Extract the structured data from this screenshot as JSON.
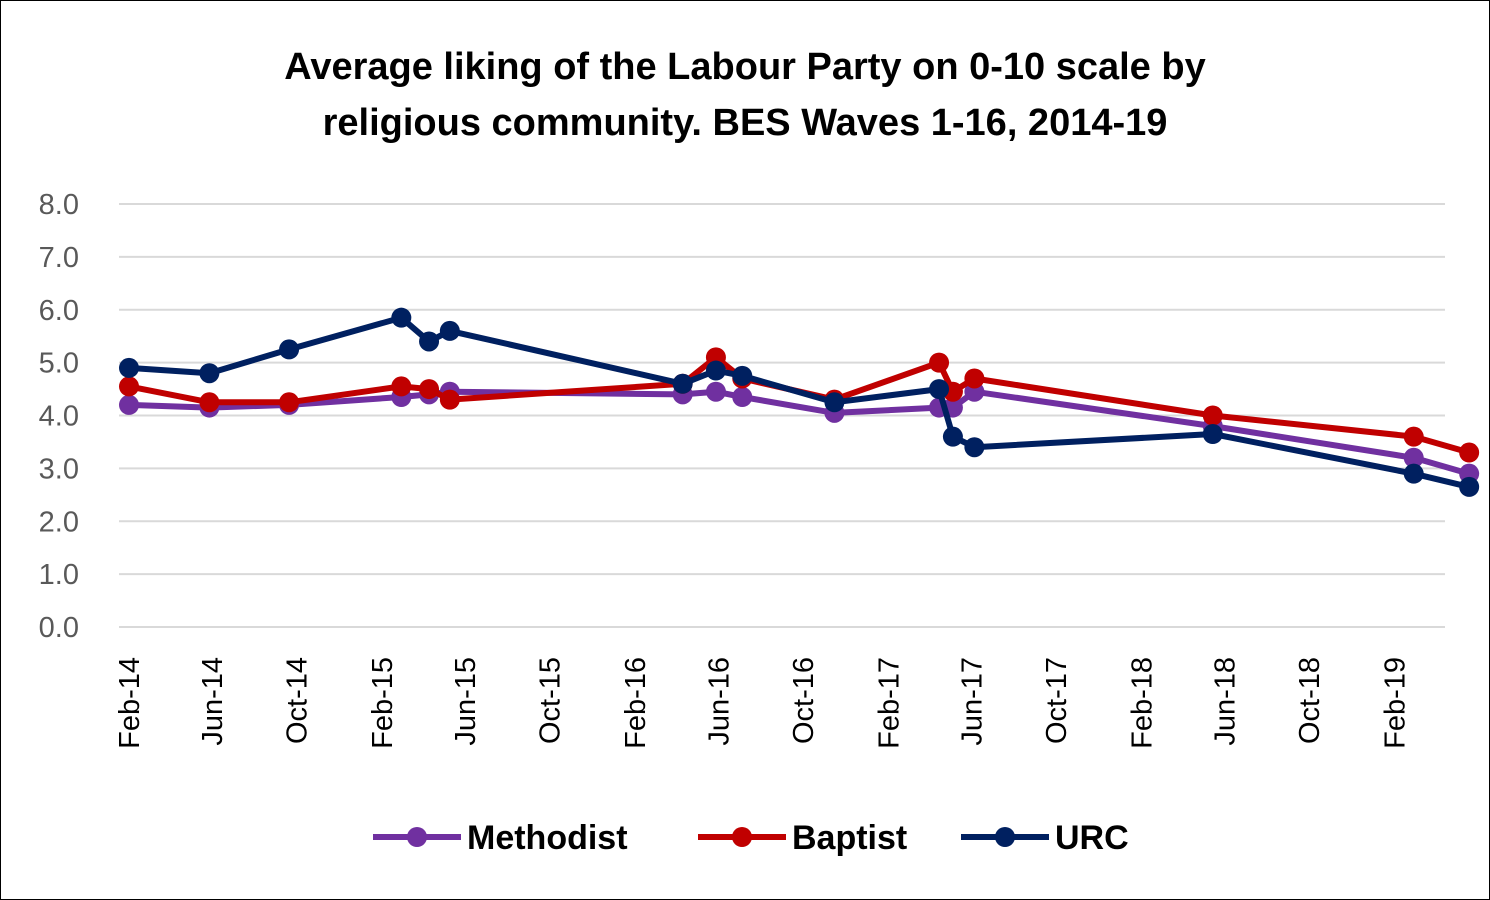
{
  "chart_data": {
    "type": "line",
    "title_line1": "Average liking of the Labour Party on 0-10 scale by",
    "title_line2": "religious community. BES Waves 1-16, 2014-19",
    "ylim": [
      0,
      8
    ],
    "yticks": [
      "0.0",
      "1.0",
      "2.0",
      "3.0",
      "4.0",
      "5.0",
      "6.0",
      "7.0",
      "8.0"
    ],
    "xaxis": {
      "type": "date",
      "range": [
        "2014-02-01",
        "2019-06-01"
      ],
      "ticks": [
        {
          "label": "Feb-14",
          "date": "2014-02-01"
        },
        {
          "label": "Jun-14",
          "date": "2014-06-01"
        },
        {
          "label": "Oct-14",
          "date": "2014-10-01"
        },
        {
          "label": "Feb-15",
          "date": "2015-02-01"
        },
        {
          "label": "Jun-15",
          "date": "2015-06-01"
        },
        {
          "label": "Oct-15",
          "date": "2015-10-01"
        },
        {
          "label": "Feb-16",
          "date": "2016-02-01"
        },
        {
          "label": "Jun-16",
          "date": "2016-06-01"
        },
        {
          "label": "Oct-16",
          "date": "2016-10-01"
        },
        {
          "label": "Feb-17",
          "date": "2017-02-01"
        },
        {
          "label": "Jun-17",
          "date": "2017-06-01"
        },
        {
          "label": "Oct-17",
          "date": "2017-10-01"
        },
        {
          "label": "Feb-18",
          "date": "2018-02-01"
        },
        {
          "label": "Jun-18",
          "date": "2018-06-01"
        },
        {
          "label": "Oct-18",
          "date": "2018-10-01"
        },
        {
          "label": "Feb-19",
          "date": "2019-02-01"
        }
      ]
    },
    "grid": true,
    "legend_position": "bottom",
    "series": [
      {
        "name": "Methodist",
        "color": "#7030A0",
        "points": [
          {
            "x": "2014-02-01",
            "y": 4.2
          },
          {
            "x": "2014-05-28",
            "y": 4.15
          },
          {
            "x": "2014-09-20",
            "y": 4.2
          },
          {
            "x": "2015-03-01",
            "y": 4.35
          },
          {
            "x": "2015-04-10",
            "y": 4.4
          },
          {
            "x": "2015-05-10",
            "y": 4.45
          },
          {
            "x": "2016-04-10",
            "y": 4.4
          },
          {
            "x": "2016-05-28",
            "y": 4.45
          },
          {
            "x": "2016-07-05",
            "y": 4.35
          },
          {
            "x": "2016-11-15",
            "y": 4.05
          },
          {
            "x": "2017-04-15",
            "y": 4.15
          },
          {
            "x": "2017-05-05",
            "y": 4.15
          },
          {
            "x": "2017-06-05",
            "y": 4.45
          },
          {
            "x": "2018-05-15",
            "y": 3.8
          },
          {
            "x": "2019-03-01",
            "y": 3.2
          },
          {
            "x": "2019-05-20",
            "y": 2.9
          }
        ]
      },
      {
        "name": "Baptist",
        "color": "#C00000",
        "points": [
          {
            "x": "2014-02-01",
            "y": 4.55
          },
          {
            "x": "2014-05-28",
            "y": 4.25
          },
          {
            "x": "2014-09-20",
            "y": 4.25
          },
          {
            "x": "2015-03-01",
            "y": 4.55
          },
          {
            "x": "2015-04-10",
            "y": 4.5
          },
          {
            "x": "2015-05-10",
            "y": 4.3
          },
          {
            "x": "2016-04-10",
            "y": 4.6
          },
          {
            "x": "2016-05-28",
            "y": 5.1
          },
          {
            "x": "2016-07-05",
            "y": 4.7
          },
          {
            "x": "2016-11-15",
            "y": 4.3
          },
          {
            "x": "2017-04-15",
            "y": 5.0
          },
          {
            "x": "2017-05-05",
            "y": 4.45
          },
          {
            "x": "2017-06-05",
            "y": 4.7
          },
          {
            "x": "2018-05-15",
            "y": 4.0
          },
          {
            "x": "2019-03-01",
            "y": 3.6
          },
          {
            "x": "2019-05-20",
            "y": 3.3
          }
        ]
      },
      {
        "name": "URC",
        "color": "#002060",
        "points": [
          {
            "x": "2014-02-01",
            "y": 4.9
          },
          {
            "x": "2014-05-28",
            "y": 4.8
          },
          {
            "x": "2014-09-20",
            "y": 5.25
          },
          {
            "x": "2015-03-01",
            "y": 5.85
          },
          {
            "x": "2015-04-10",
            "y": 5.4
          },
          {
            "x": "2015-05-10",
            "y": 5.6
          },
          {
            "x": "2016-04-10",
            "y": 4.6
          },
          {
            "x": "2016-05-28",
            "y": 4.85
          },
          {
            "x": "2016-07-05",
            "y": 4.75
          },
          {
            "x": "2016-11-15",
            "y": 4.25
          },
          {
            "x": "2017-04-15",
            "y": 4.5
          },
          {
            "x": "2017-05-05",
            "y": 3.6
          },
          {
            "x": "2017-06-05",
            "y": 3.4
          },
          {
            "x": "2018-05-15",
            "y": 3.65
          },
          {
            "x": "2019-03-01",
            "y": 2.9
          },
          {
            "x": "2019-05-20",
            "y": 2.65
          }
        ]
      }
    ]
  }
}
